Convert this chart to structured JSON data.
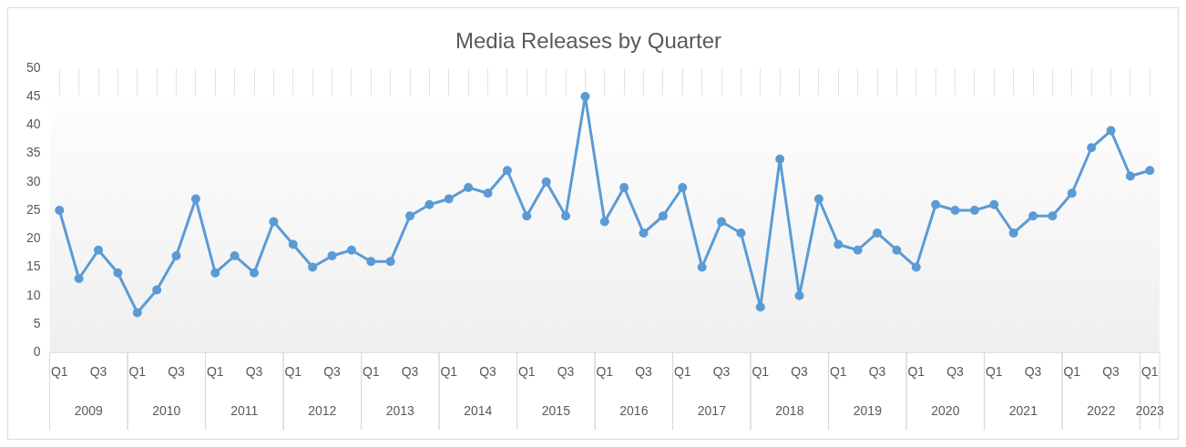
{
  "chart_data": {
    "type": "line",
    "title": "Media Releases by Quarter",
    "categories": [
      "Q1",
      null,
      "Q3",
      null,
      "Q1",
      null,
      "Q3",
      null,
      "Q1",
      null,
      "Q3",
      null,
      "Q1",
      null,
      "Q3",
      null,
      "Q1",
      null,
      "Q3",
      null,
      "Q1",
      null,
      "Q3",
      null,
      "Q1",
      null,
      "Q3",
      null,
      "Q1",
      null,
      "Q3",
      null,
      "Q1",
      null,
      "Q3",
      null,
      "Q1",
      null,
      "Q3",
      null,
      "Q1",
      null,
      "Q3",
      null,
      "Q1",
      null,
      "Q3",
      null,
      "Q1",
      null,
      "Q3",
      null,
      "Q1",
      null,
      "Q3",
      null,
      "Q1"
    ],
    "series": [
      {
        "color": "#5b9bd5",
        "values": [
          25,
          13,
          18,
          14,
          7,
          11,
          17,
          27,
          14,
          17,
          14,
          23,
          19,
          15,
          17,
          18,
          16,
          16,
          24,
          26,
          27,
          29,
          28,
          32,
          24,
          30,
          24,
          45,
          23,
          29,
          21,
          24,
          29,
          15,
          23,
          21,
          8,
          34,
          10,
          27,
          19,
          18,
          21,
          18,
          15,
          26,
          25,
          25,
          26,
          21,
          24,
          24,
          28,
          36,
          39,
          31,
          32
        ]
      }
    ],
    "annotations": [
      "2009",
      "2010",
      "2011",
      "2012",
      "2013",
      "2014",
      "2015",
      "2016",
      "2017",
      "2018",
      "2019",
      "2020",
      "2021",
      "2022",
      "2023"
    ],
    "ylim": [
      0,
      50
    ],
    "yticks": [
      0,
      5,
      10,
      15,
      20,
      25,
      30,
      35,
      40,
      45,
      50
    ],
    "grid": "x",
    "legend": false,
    "marker": "circle",
    "line_style": "solid"
  }
}
